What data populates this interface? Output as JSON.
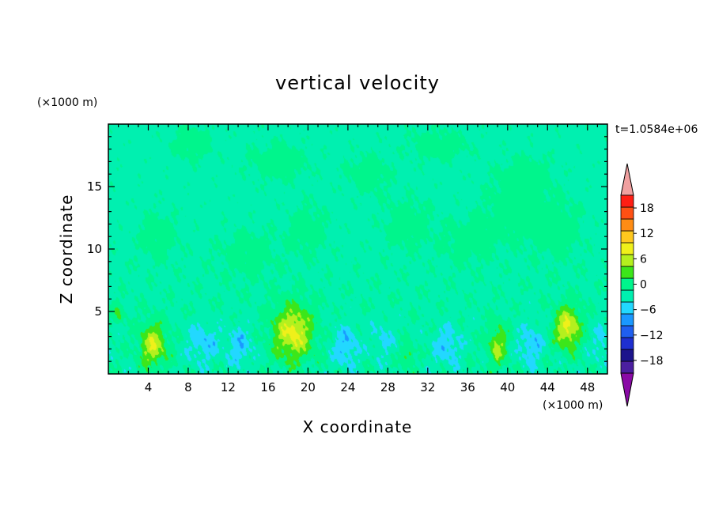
{
  "chart_data": {
    "type": "heatmap",
    "title": "vertical velocity",
    "xlabel": "X coordinate",
    "ylabel": "Z coordinate",
    "x_unit": "(×1000 m)",
    "y_unit": "(×1000 m)",
    "time_label": "t=1.0584e+06",
    "xlim": [
      0,
      50
    ],
    "ylim": [
      0,
      20
    ],
    "x_ticks": [
      4,
      8,
      12,
      16,
      20,
      24,
      28,
      32,
      36,
      40,
      44,
      48
    ],
    "y_ticks": [
      5,
      10,
      15
    ],
    "x_minor_step": 1,
    "y_minor_step": 1,
    "colorbar": {
      "levels": [
        -21,
        -18,
        -15,
        -12,
        -9,
        -6,
        -3,
        0,
        3,
        6,
        9,
        12,
        15,
        18,
        21
      ],
      "labels": [
        -18,
        -12,
        -6,
        0,
        6,
        12,
        18
      ],
      "colors": [
        "#4b1fa0",
        "#1c148c",
        "#1e2fd0",
        "#1f5ff0",
        "#1a98ff",
        "#22d8ff",
        "#00f0b0",
        "#00f58c",
        "#3ce61a",
        "#b4f01e",
        "#f0f01a",
        "#ffc81e",
        "#ff8c14",
        "#ff5014",
        "#ff1e14"
      ],
      "under_color": "#8a0aa6",
      "over_color": "#f0a0a0"
    },
    "features": [
      {
        "x": 4.5,
        "z": 2.3,
        "sx": 1.3,
        "sz": 1.7,
        "w": 9.5
      },
      {
        "x": 18.5,
        "z": 3.3,
        "sx": 2.0,
        "sz": 2.2,
        "w": 10.5
      },
      {
        "x": 30.0,
        "z": 1.4,
        "sx": 0.6,
        "sz": 0.9,
        "w": 5
      },
      {
        "x": 39.0,
        "z": 2.3,
        "sx": 1.0,
        "sz": 1.7,
        "w": 7
      },
      {
        "x": 46.0,
        "z": 3.7,
        "sx": 1.3,
        "sz": 1.7,
        "w": 10.5
      },
      {
        "x": 1.0,
        "z": 4.8,
        "sx": 0.6,
        "sz": 0.8,
        "w": 4
      },
      {
        "x": 9.5,
        "z": 2.5,
        "sx": 1.6,
        "sz": 1.6,
        "w": -4.5
      },
      {
        "x": 13.2,
        "z": 2.2,
        "sx": 1.3,
        "sz": 1.6,
        "w": -4.5
      },
      {
        "x": 23.8,
        "z": 2.2,
        "sx": 1.3,
        "sz": 1.7,
        "w": -5
      },
      {
        "x": 27.5,
        "z": 2.8,
        "sx": 1.2,
        "sz": 1.5,
        "w": -3
      },
      {
        "x": 34.0,
        "z": 2.2,
        "sx": 1.4,
        "sz": 1.6,
        "w": -4.5
      },
      {
        "x": 42.3,
        "z": 2.3,
        "sx": 1.3,
        "sz": 1.7,
        "w": -4.5
      },
      {
        "x": 49.3,
        "z": 2.5,
        "sx": 0.9,
        "sz": 1.5,
        "w": -3.5
      }
    ],
    "background_w": -0.6,
    "positive_regions": [
      {
        "x": 8.5,
        "z": 18.5,
        "sx": 2.0,
        "sz": 1.4
      },
      {
        "x": 17.0,
        "z": 17.0,
        "sx": 3.0,
        "sz": 1.5
      },
      {
        "x": 26.0,
        "z": 16.0,
        "sx": 2.2,
        "sz": 1.6
      },
      {
        "x": 33.0,
        "z": 18.3,
        "sx": 3.0,
        "sz": 1.2
      },
      {
        "x": 36.0,
        "z": 10.5,
        "sx": 2.5,
        "sz": 1.8
      },
      {
        "x": 40.5,
        "z": 13.0,
        "sx": 3.0,
        "sz": 2.5
      },
      {
        "x": 45.0,
        "z": 11.5,
        "sx": 2.5,
        "sz": 2.5
      },
      {
        "x": 42.0,
        "z": 16.0,
        "sx": 2.5,
        "sz": 1.5
      },
      {
        "x": 5.0,
        "z": 11.0,
        "sx": 2.0,
        "sz": 2.0
      },
      {
        "x": 20.0,
        "z": 11.5,
        "sx": 2.0,
        "sz": 2.0
      },
      {
        "x": 30.0,
        "z": 12.0,
        "sx": 2.5,
        "sz": 2.0
      },
      {
        "x": 14.0,
        "z": 9.5,
        "sx": 3.0,
        "sz": 2.0
      }
    ]
  }
}
